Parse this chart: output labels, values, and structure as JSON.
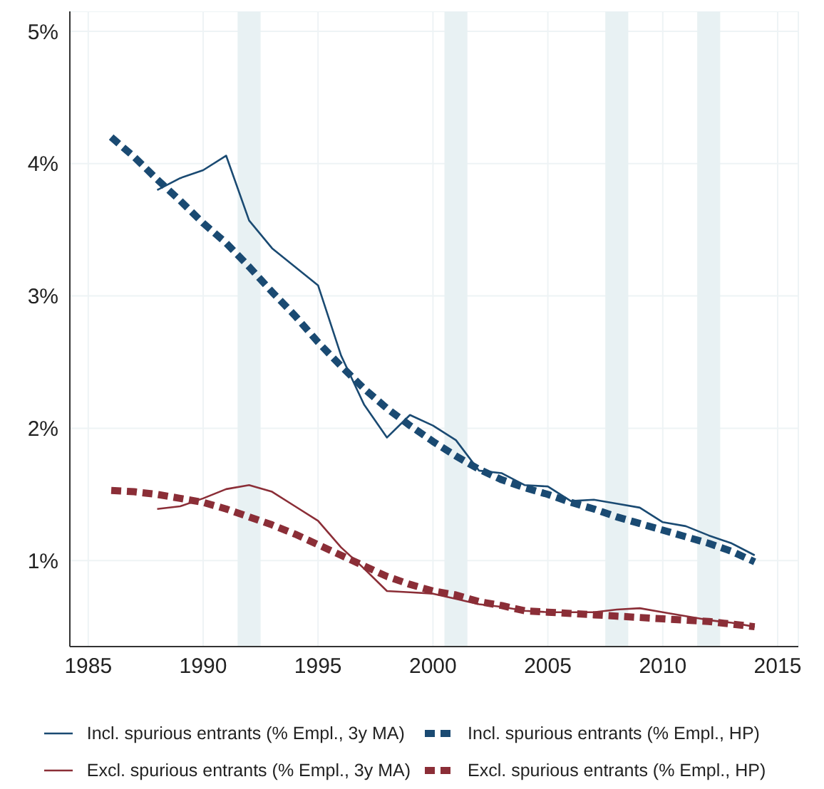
{
  "chart_data": {
    "type": "line",
    "xlim": [
      1984.2,
      2015.9
    ],
    "xticks": [
      1985,
      1990,
      1995,
      2000,
      2005,
      2010,
      2015
    ],
    "ylim": [
      0.35,
      5.15
    ],
    "yticks": [
      {
        "value": 1,
        "label": "1%"
      },
      {
        "value": 2,
        "label": "2%"
      },
      {
        "value": 3,
        "label": "3%"
      },
      {
        "value": 4,
        "label": "4%"
      },
      {
        "value": 5,
        "label": "5%"
      }
    ],
    "grid": true,
    "legend": "bottom",
    "bands": [
      {
        "axis": "x",
        "from": 1991.5,
        "to": 1992.5,
        "color": "#e8f1f3"
      },
      {
        "axis": "x",
        "from": 2000.5,
        "to": 2001.5,
        "color": "#e8f1f3"
      },
      {
        "axis": "x",
        "from": 2007.5,
        "to": 2008.5,
        "color": "#e8f1f3"
      },
      {
        "axis": "x",
        "from": 2011.5,
        "to": 2012.5,
        "color": "#e8f1f3"
      }
    ],
    "series": [
      {
        "name": "Incl. spurious entrants (% Empl., 3y MA)",
        "color": "#1a4a72",
        "line_style": "solid",
        "x": [
          1988,
          1989,
          1990,
          1991,
          1992,
          1993,
          1994,
          1995,
          1996,
          1997,
          1998,
          1999,
          2000,
          2001,
          2002,
          2003,
          2004,
          2005,
          2006,
          2007,
          2008,
          2009,
          2010,
          2011,
          2012,
          2013,
          2014
        ],
        "values": [
          3.8,
          3.89,
          3.95,
          4.06,
          3.57,
          3.36,
          3.22,
          3.08,
          2.55,
          2.18,
          1.93,
          2.1,
          2.02,
          1.91,
          1.68,
          1.66,
          1.57,
          1.56,
          1.45,
          1.46,
          1.43,
          1.4,
          1.29,
          1.26,
          1.19,
          1.13,
          1.04
        ]
      },
      {
        "name": "Incl. spurious entrants (% Empl., HP)",
        "color": "#1a4a72",
        "line_style": "dashed",
        "x": [
          1986,
          1987,
          1988,
          1989,
          1990,
          1991,
          1992,
          1993,
          1994,
          1995,
          1996,
          1997,
          1998,
          1999,
          2000,
          2001,
          2002,
          2003,
          2004,
          2005,
          2006,
          2007,
          2008,
          2009,
          2010,
          2011,
          2012,
          2013,
          2014
        ],
        "values": [
          4.2,
          4.05,
          3.88,
          3.72,
          3.55,
          3.4,
          3.22,
          3.03,
          2.85,
          2.65,
          2.47,
          2.3,
          2.15,
          2.02,
          1.9,
          1.79,
          1.69,
          1.61,
          1.55,
          1.5,
          1.44,
          1.39,
          1.33,
          1.28,
          1.23,
          1.18,
          1.13,
          1.07,
          0.99
        ]
      },
      {
        "name": "Excl. spurious entrants (% Empl., 3y MA)",
        "color": "#8b2e37",
        "line_style": "solid",
        "x": [
          1988,
          1989,
          1990,
          1991,
          1992,
          1993,
          1994,
          1995,
          1996,
          1997,
          1998,
          1999,
          2000,
          2001,
          2002,
          2003,
          2004,
          2005,
          2006,
          2007,
          2008,
          2009,
          2010,
          2011,
          2012,
          2013,
          2014
        ],
        "values": [
          1.39,
          1.41,
          1.47,
          1.54,
          1.57,
          1.52,
          1.41,
          1.3,
          1.1,
          0.94,
          0.77,
          0.76,
          0.75,
          0.71,
          0.67,
          0.65,
          0.62,
          0.61,
          0.61,
          0.61,
          0.63,
          0.64,
          0.61,
          0.58,
          0.55,
          0.53,
          0.5
        ]
      },
      {
        "name": "Excl. spurious entrants (% Empl., HP)",
        "color": "#8b2e37",
        "line_style": "dashed",
        "x": [
          1986,
          1987,
          1988,
          1989,
          1990,
          1991,
          1992,
          1993,
          1994,
          1995,
          1996,
          1997,
          1998,
          1999,
          2000,
          2001,
          2002,
          2003,
          2004,
          2005,
          2006,
          2007,
          2008,
          2009,
          2010,
          2011,
          2012,
          2013,
          2014
        ],
        "values": [
          1.53,
          1.52,
          1.5,
          1.47,
          1.44,
          1.39,
          1.33,
          1.27,
          1.2,
          1.12,
          1.04,
          0.96,
          0.88,
          0.82,
          0.77,
          0.74,
          0.69,
          0.66,
          0.62,
          0.61,
          0.6,
          0.59,
          0.58,
          0.57,
          0.56,
          0.55,
          0.54,
          0.52,
          0.5
        ]
      }
    ]
  }
}
